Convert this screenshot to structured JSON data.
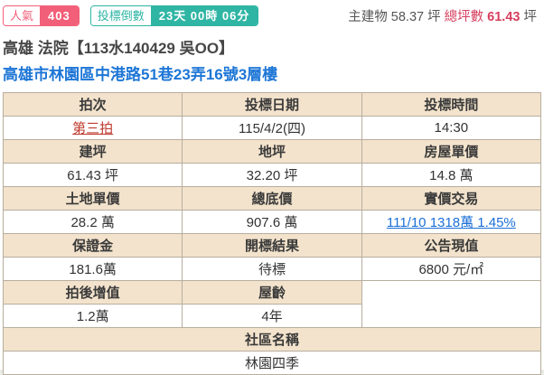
{
  "topbar": {
    "popularity": {
      "label": "人氣",
      "value": "403"
    },
    "countdown": {
      "label": "投標倒數",
      "value": "23天 00時 06分"
    },
    "main_building_label": "主建物",
    "main_building_value": "58.37 坪",
    "total_label": "總坪數",
    "total_value": "61.43",
    "total_unit": "坪"
  },
  "header": {
    "title": "高雄 法院【113水140429 吳OO】",
    "address": "高雄市林園區中港路51巷23弄16號3層樓"
  },
  "table": {
    "rows": [
      {
        "headers": [
          "拍次",
          "投標日期",
          "投標時間"
        ],
        "values": [
          "第三拍",
          "115/4/2(四)",
          "14:30"
        ]
      },
      {
        "headers": [
          "建坪",
          "地坪",
          "房屋單價"
        ],
        "values": [
          "61.43 坪",
          "32.20 坪",
          "14.8 萬"
        ]
      },
      {
        "headers": [
          "土地單價",
          "總底價",
          "實價交易"
        ],
        "values": [
          "28.2 萬",
          "907.6 萬",
          "111/10 1318萬 1.45%"
        ]
      },
      {
        "headers": [
          "保證金",
          "開標結果",
          "公告現值"
        ],
        "values": [
          "181.6萬",
          "待標",
          "6800 元/㎡"
        ]
      },
      {
        "headers": [
          "拍後增值",
          "屋齡"
        ],
        "values": [
          "1.2萬",
          "4年"
        ]
      }
    ],
    "community": {
      "header": "社區名稱",
      "value": "林園四季"
    }
  },
  "colors": {
    "badge_pink": "#f25f78",
    "badge_teal": "#2fb5a4",
    "total_crimson": "#d63f5e",
    "red_link": "#c03a2e",
    "blue_link": "#1b6fd8",
    "address_blue": "#1d76d6",
    "table_header_bg": "#f3e3cc",
    "table_border": "#b7ae9e"
  }
}
